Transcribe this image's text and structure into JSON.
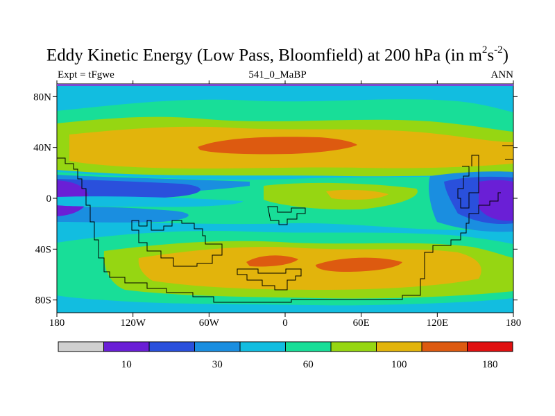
{
  "title": {
    "prefix": "Eddy Kinetic Energy (Low Pass, Bloomfield) at 200 hPa (in m",
    "sup1": "2",
    "mid": "s",
    "sup2": "-2",
    "suffix": ")"
  },
  "subtitle_left": "Expt = tFgwe",
  "subtitle_center": "541_0_MaBP",
  "subtitle_right": "ANN",
  "lon_ticks": [
    {
      "value": -180,
      "label": "180"
    },
    {
      "value": -120,
      "label": "120W"
    },
    {
      "value": -60,
      "label": "60W"
    },
    {
      "value": 0,
      "label": "0"
    },
    {
      "value": 60,
      "label": "60E"
    },
    {
      "value": 120,
      "label": "120E"
    },
    {
      "value": 180,
      "label": "180"
    }
  ],
  "lat_ticks": [
    {
      "value": 80,
      "label": "80N"
    },
    {
      "value": 40,
      "label": "40N"
    },
    {
      "value": 0,
      "label": "0"
    },
    {
      "value": -40,
      "label": "40S"
    },
    {
      "value": -80,
      "label": "80S"
    }
  ],
  "colorbar": {
    "colors": [
      "#d0d0d0",
      "#6a1fd6",
      "#2a50dc",
      "#1a8ee0",
      "#12bde0",
      "#18de98",
      "#96d612",
      "#e2b40c",
      "#dd5a10",
      "#e01010"
    ],
    "labels": [
      {
        "after_box": 1,
        "text": "10"
      },
      {
        "after_box": 3,
        "text": "30"
      },
      {
        "after_box": 5,
        "text": "60"
      },
      {
        "after_box": 7,
        "text": "100"
      },
      {
        "after_box": 9,
        "text": "180"
      }
    ]
  }
}
